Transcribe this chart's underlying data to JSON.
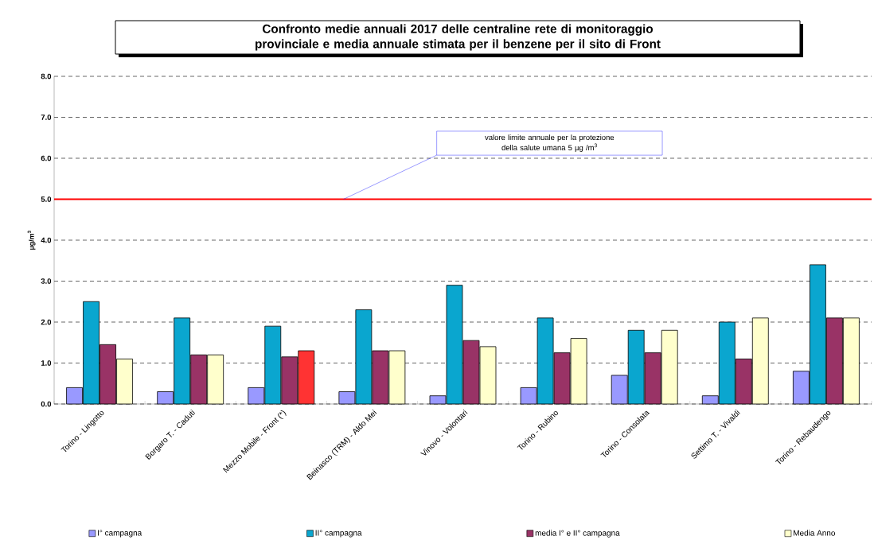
{
  "chart_data": {
    "type": "bar",
    "title": "Confronto medie annuali 2017 delle centraline rete di monitoraggio provinciale e media annuale stimata per il benzene per il sito di Front",
    "ylabel": "µg/m$^{3}$",
    "categories": [
      "Torino - Lingotto",
      "Borgaro T. - Caduti",
      "Mezzo Mobile - Front (*)",
      "Beinasco (TRM) - Aldo Mei",
      "Vinovo - Volontari",
      "Torino - Rubino",
      "Torino - Consolata",
      "Settimo T. - Vivaldi",
      "Torino - Rebaudengo"
    ],
    "series": [
      {
        "name": "I° campagna",
        "color": "#9999ff",
        "values": [
          0.4,
          0.3,
          0.4,
          0.3,
          0.2,
          0.4,
          0.7,
          0.2,
          0.8
        ]
      },
      {
        "name": "II° campagna",
        "color": "#0aa6cf",
        "values": [
          2.5,
          2.1,
          1.9,
          2.3,
          2.9,
          2.1,
          1.8,
          2.0,
          3.4
        ]
      },
      {
        "name": "media I° e II° campagna",
        "color": "#993366",
        "values": [
          1.45,
          1.2,
          1.15,
          1.3,
          1.55,
          1.25,
          1.25,
          1.1,
          2.1
        ]
      },
      {
        "name": "Media Anno",
        "color": "#ffffcc",
        "colors": [
          "#ffffcc",
          "#ffffcc",
          "#ff3333",
          "#ffffcc",
          "#ffffcc",
          "#ffffcc",
          "#ffffcc",
          "#ffffcc",
          "#ffffcc"
        ],
        "values": [
          1.1,
          1.2,
          1.3,
          1.3,
          1.4,
          1.6,
          1.8,
          2.1,
          2.1
        ]
      }
    ],
    "ylim": [
      0,
      8
    ],
    "yticks": [
      {
        "value": 0,
        "label": "0.0"
      },
      {
        "value": 1,
        "label": "1.0"
      },
      {
        "value": 2,
        "label": "2.0"
      },
      {
        "value": 3,
        "label": "3.0"
      },
      {
        "value": 4,
        "label": "4.0"
      },
      {
        "value": 5,
        "label": "5.0"
      },
      {
        "value": 6,
        "label": "6.0"
      },
      {
        "value": 7,
        "label": "7.0"
      },
      {
        "value": 8,
        "label": "8.0"
      }
    ],
    "grid": "y",
    "legend": "bottom",
    "ref_lines": [
      {
        "axis": "y",
        "value": 5,
        "color": "#ff0000"
      }
    ],
    "annotations": [
      "valore limite annuale per la protezione della salute umana 5 µg /m$^{3}$"
    ]
  }
}
